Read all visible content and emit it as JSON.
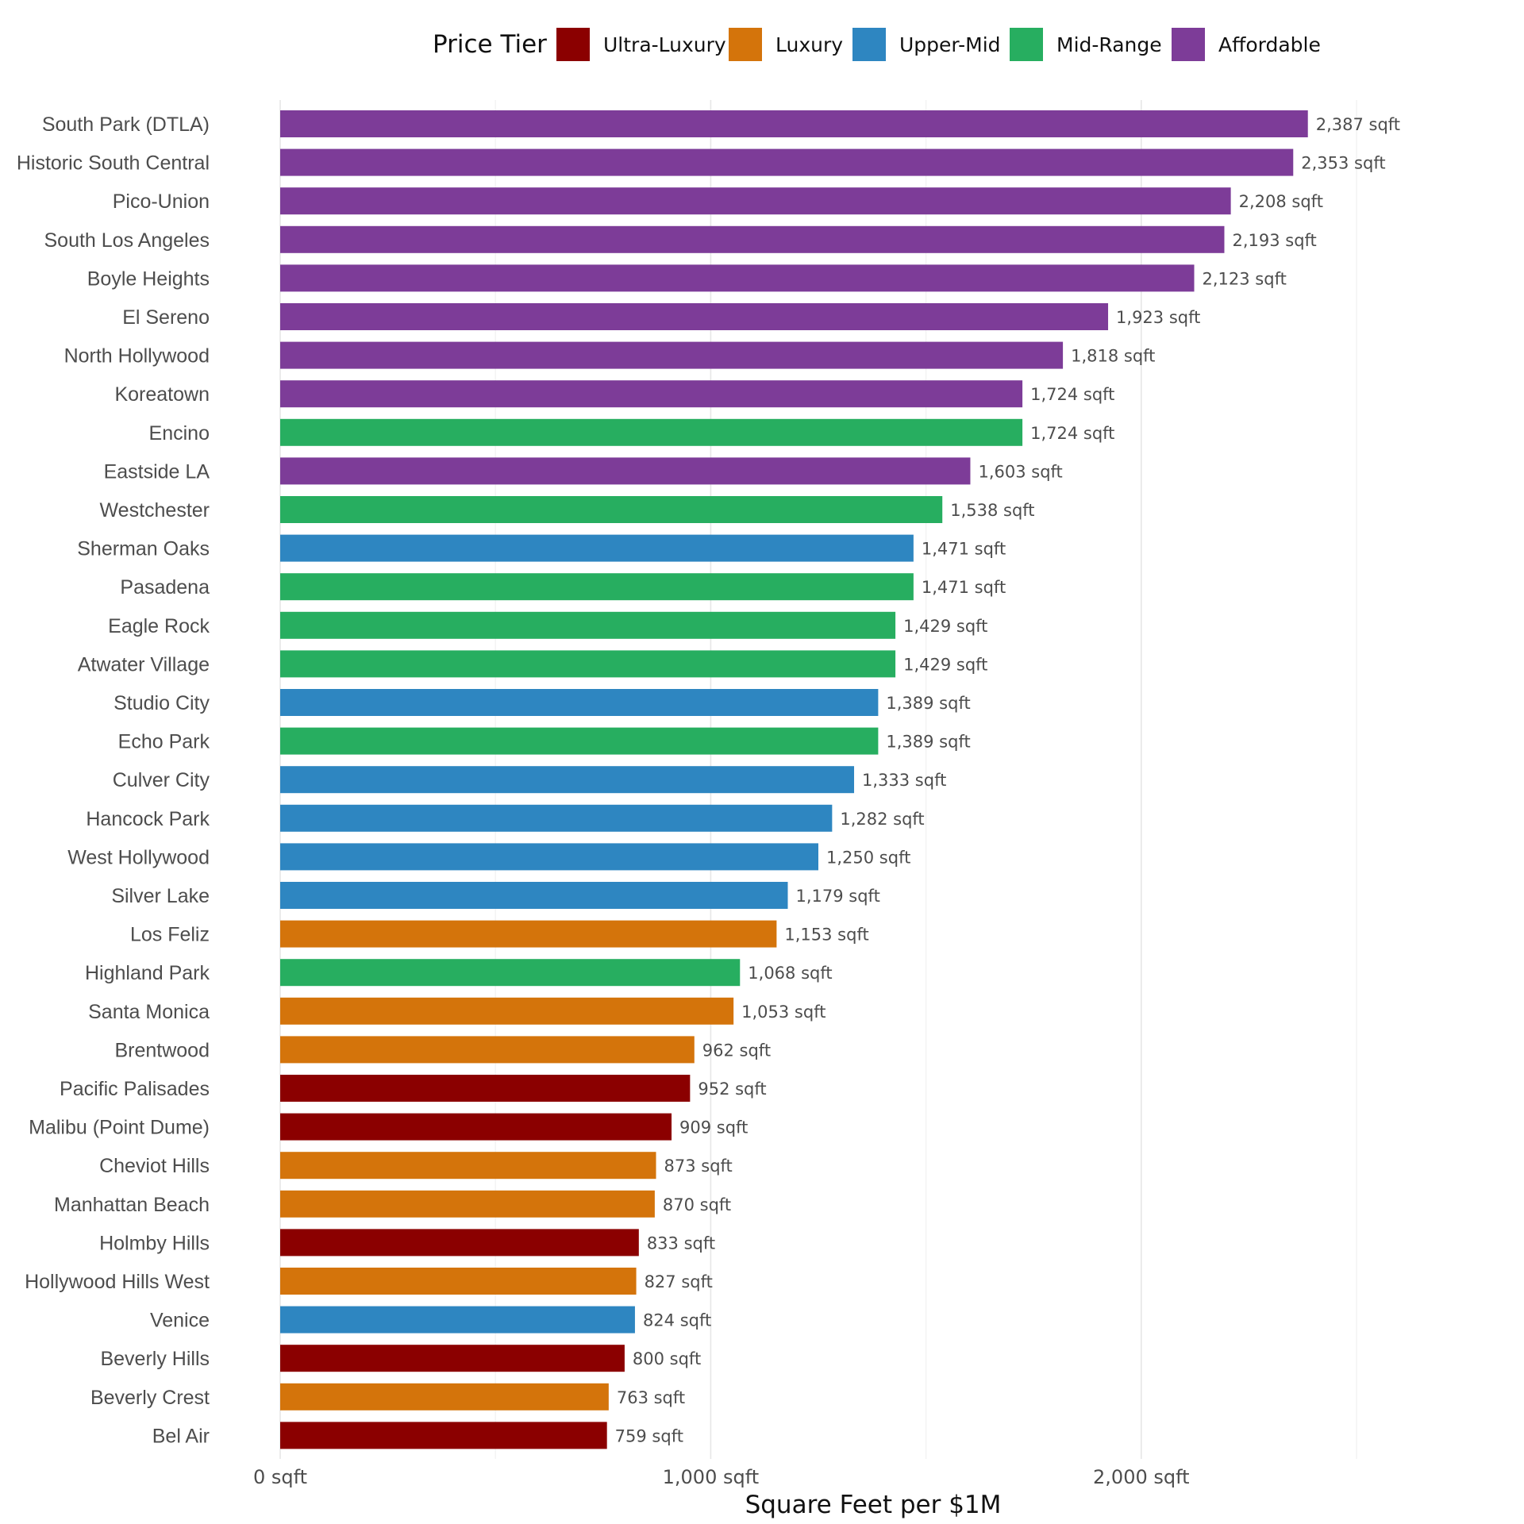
{
  "chart_data": {
    "type": "bar",
    "orientation": "horizontal",
    "xlabel": "Square Feet per $1M",
    "x_ticks": [
      "0 sqft",
      "1,000 sqft",
      "2,000 sqft"
    ],
    "x_tick_values": [
      0,
      1000,
      2000
    ],
    "xlim": [
      0,
      2500
    ],
    "grid": true,
    "value_suffix": " sqft",
    "legend": {
      "title": "Price Tier",
      "position": "top",
      "entries": [
        {
          "name": "Ultra-Luxury",
          "color": "#8B0000"
        },
        {
          "name": "Luxury",
          "color": "#D4740B"
        },
        {
          "name": "Upper-Mid",
          "color": "#2E86C1"
        },
        {
          "name": "Mid-Range",
          "color": "#27AE60"
        },
        {
          "name": "Affordable",
          "color": "#7D3C98"
        }
      ]
    },
    "bars": [
      {
        "category": "South Park (DTLA)",
        "value": 2387,
        "label": "2,387 sqft",
        "tier": "Affordable"
      },
      {
        "category": "Historic South Central",
        "value": 2353,
        "label": "2,353 sqft",
        "tier": "Affordable"
      },
      {
        "category": "Pico-Union",
        "value": 2208,
        "label": "2,208 sqft",
        "tier": "Affordable"
      },
      {
        "category": "South Los Angeles",
        "value": 2193,
        "label": "2,193 sqft",
        "tier": "Affordable"
      },
      {
        "category": "Boyle Heights",
        "value": 2123,
        "label": "2,123 sqft",
        "tier": "Affordable"
      },
      {
        "category": "El Sereno",
        "value": 1923,
        "label": "1,923 sqft",
        "tier": "Affordable"
      },
      {
        "category": "North Hollywood",
        "value": 1818,
        "label": "1,818 sqft",
        "tier": "Affordable"
      },
      {
        "category": "Koreatown",
        "value": 1724,
        "label": "1,724 sqft",
        "tier": "Affordable"
      },
      {
        "category": "Encino",
        "value": 1724,
        "label": "1,724 sqft",
        "tier": "Mid-Range"
      },
      {
        "category": "Eastside LA",
        "value": 1603,
        "label": "1,603 sqft",
        "tier": "Affordable"
      },
      {
        "category": "Westchester",
        "value": 1538,
        "label": "1,538 sqft",
        "tier": "Mid-Range"
      },
      {
        "category": "Sherman Oaks",
        "value": 1471,
        "label": "1,471 sqft",
        "tier": "Upper-Mid"
      },
      {
        "category": "Pasadena",
        "value": 1471,
        "label": "1,471 sqft",
        "tier": "Mid-Range"
      },
      {
        "category": "Eagle Rock",
        "value": 1429,
        "label": "1,429 sqft",
        "tier": "Mid-Range"
      },
      {
        "category": "Atwater Village",
        "value": 1429,
        "label": "1,429 sqft",
        "tier": "Mid-Range"
      },
      {
        "category": "Studio City",
        "value": 1389,
        "label": "1,389 sqft",
        "tier": "Upper-Mid"
      },
      {
        "category": "Echo Park",
        "value": 1389,
        "label": "1,389 sqft",
        "tier": "Mid-Range"
      },
      {
        "category": "Culver City",
        "value": 1333,
        "label": "1,333 sqft",
        "tier": "Upper-Mid"
      },
      {
        "category": "Hancock Park",
        "value": 1282,
        "label": "1,282 sqft",
        "tier": "Upper-Mid"
      },
      {
        "category": "West Hollywood",
        "value": 1250,
        "label": "1,250 sqft",
        "tier": "Upper-Mid"
      },
      {
        "category": "Silver Lake",
        "value": 1179,
        "label": "1,179 sqft",
        "tier": "Upper-Mid"
      },
      {
        "category": "Los Feliz",
        "value": 1153,
        "label": "1,153 sqft",
        "tier": "Luxury"
      },
      {
        "category": "Highland Park",
        "value": 1068,
        "label": "1,068 sqft",
        "tier": "Mid-Range"
      },
      {
        "category": "Santa Monica",
        "value": 1053,
        "label": "1,053 sqft",
        "tier": "Luxury"
      },
      {
        "category": "Brentwood",
        "value": 962,
        "label": "962 sqft",
        "tier": "Luxury"
      },
      {
        "category": "Pacific Palisades",
        "value": 952,
        "label": "952 sqft",
        "tier": "Ultra-Luxury"
      },
      {
        "category": "Malibu (Point Dume)",
        "value": 909,
        "label": "909 sqft",
        "tier": "Ultra-Luxury"
      },
      {
        "category": "Cheviot Hills",
        "value": 873,
        "label": "873 sqft",
        "tier": "Luxury"
      },
      {
        "category": "Manhattan Beach",
        "value": 870,
        "label": "870 sqft",
        "tier": "Luxury"
      },
      {
        "category": "Holmby Hills",
        "value": 833,
        "label": "833 sqft",
        "tier": "Ultra-Luxury"
      },
      {
        "category": "Hollywood Hills West",
        "value": 827,
        "label": "827 sqft",
        "tier": "Luxury"
      },
      {
        "category": "Venice",
        "value": 824,
        "label": "824 sqft",
        "tier": "Upper-Mid"
      },
      {
        "category": "Beverly Hills",
        "value": 800,
        "label": "800 sqft",
        "tier": "Ultra-Luxury"
      },
      {
        "category": "Beverly Crest",
        "value": 763,
        "label": "763 sqft",
        "tier": "Luxury"
      },
      {
        "category": "Bel Air",
        "value": 759,
        "label": "759 sqft",
        "tier": "Ultra-Luxury"
      }
    ]
  }
}
